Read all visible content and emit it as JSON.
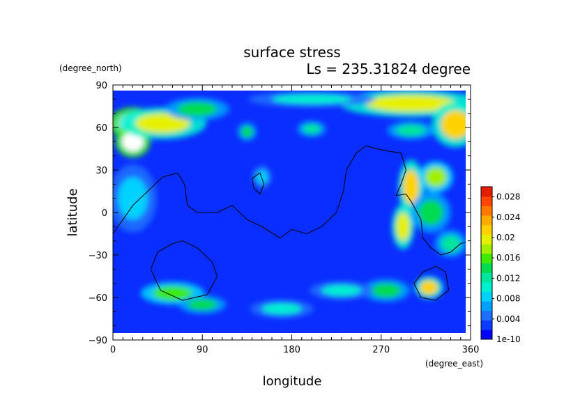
{
  "chart_data": {
    "type": "heatmap",
    "title": "surface stress",
    "subtitle": "Ls = 235.31824 degree",
    "xlabel": "longitude",
    "ylabel": "latitude",
    "x_units": "(degree_east)",
    "y_units": "(degree_north)",
    "xlim": [
      0,
      360
    ],
    "ylim": [
      -90,
      90
    ],
    "x_ticks": [
      0,
      90,
      180,
      270,
      360
    ],
    "y_ticks": [
      -90,
      -60,
      -30,
      0,
      30,
      60,
      90
    ],
    "x_tick_labels": [
      "0",
      "90",
      "180",
      "270",
      "360"
    ],
    "y_tick_labels": [
      "−90",
      "−60",
      "−30",
      "0",
      "30",
      "60",
      "90"
    ],
    "colorbar": {
      "min_label": "1e-10",
      "range": [
        0,
        0.03
      ],
      "ticks": [
        0.004,
        0.008,
        0.012,
        0.016,
        0.02,
        0.024,
        0.028
      ],
      "tick_labels": [
        "0.004",
        "0.008",
        "0.012",
        "0.016",
        "0.02",
        "0.024",
        "0.028"
      ],
      "colors": [
        "#0000ff",
        "#0a3cff",
        "#1e6eff",
        "#00a0ff",
        "#00d2ff",
        "#00f0d2",
        "#00e69b",
        "#00dc50",
        "#3ceb00",
        "#a0f000",
        "#e6f000",
        "#ffd200",
        "#ffaa00",
        "#ff7800",
        "#ff4600",
        "#e61e00"
      ]
    },
    "features": [
      {
        "lon": 20,
        "lat": 63,
        "value": 0.03,
        "size_lon": 30,
        "size_lat": 14
      },
      {
        "lon": 20,
        "lat": 50,
        "value": 0.03,
        "size_lon": 22,
        "size_lat": 14
      },
      {
        "lon": 50,
        "lat": 63,
        "value": 0.02,
        "size_lon": 55,
        "size_lat": 14
      },
      {
        "lon": 85,
        "lat": 73,
        "value": 0.014,
        "size_lon": 40,
        "size_lat": 10
      },
      {
        "lon": 135,
        "lat": 57,
        "value": 0.014,
        "size_lon": 12,
        "size_lat": 8
      },
      {
        "lon": 200,
        "lat": 59,
        "value": 0.012,
        "size_lon": 18,
        "size_lat": 7
      },
      {
        "lon": 300,
        "lat": 77,
        "value": 0.02,
        "size_lon": 90,
        "size_lat": 12
      },
      {
        "lon": 345,
        "lat": 62,
        "value": 0.022,
        "size_lon": 30,
        "size_lat": 20
      },
      {
        "lon": 300,
        "lat": 58,
        "value": 0.012,
        "size_lon": 30,
        "size_lat": 8
      },
      {
        "lon": 300,
        "lat": 18,
        "value": 0.022,
        "size_lon": 16,
        "size_lat": 24
      },
      {
        "lon": 292,
        "lat": -10,
        "value": 0.02,
        "size_lon": 14,
        "size_lat": 20
      },
      {
        "lon": 325,
        "lat": 25,
        "value": 0.018,
        "size_lon": 22,
        "size_lat": 14
      },
      {
        "lon": 320,
        "lat": 0,
        "value": 0.014,
        "size_lon": 25,
        "size_lat": 18
      },
      {
        "lon": 340,
        "lat": -22,
        "value": 0.012,
        "size_lon": 20,
        "size_lat": 12
      },
      {
        "lon": 318,
        "lat": -53,
        "value": 0.022,
        "size_lon": 18,
        "size_lat": 10
      },
      {
        "lon": 275,
        "lat": -55,
        "value": 0.014,
        "size_lon": 30,
        "size_lat": 10
      },
      {
        "lon": 60,
        "lat": -57,
        "value": 0.016,
        "size_lon": 40,
        "size_lat": 10
      },
      {
        "lon": 90,
        "lat": -65,
        "value": 0.014,
        "size_lon": 30,
        "size_lat": 8
      },
      {
        "lon": 170,
        "lat": -68,
        "value": 0.01,
        "size_lon": 40,
        "size_lat": 8
      },
      {
        "lon": 230,
        "lat": -55,
        "value": 0.01,
        "size_lon": 40,
        "size_lat": 8
      },
      {
        "lon": 150,
        "lat": 25,
        "value": 0.008,
        "size_lon": 12,
        "size_lat": 10
      },
      {
        "lon": 20,
        "lat": 10,
        "value": 0.008,
        "size_lon": 30,
        "size_lat": 30
      },
      {
        "lon": 200,
        "lat": 80,
        "value": 0.01,
        "size_lon": 80,
        "size_lat": 7
      }
    ],
    "contours": [
      {
        "points": [
          [
            0,
            -15
          ],
          [
            10,
            -5
          ],
          [
            20,
            5
          ],
          [
            35,
            15
          ],
          [
            50,
            25
          ],
          [
            65,
            28
          ],
          [
            72,
            20
          ],
          [
            75,
            5
          ],
          [
            85,
            0
          ],
          [
            105,
            0
          ],
          [
            120,
            5
          ],
          [
            135,
            -5
          ],
          [
            150,
            -10
          ],
          [
            168,
            -18
          ],
          [
            180,
            -12
          ],
          [
            195,
            -15
          ],
          [
            210,
            -10
          ],
          [
            225,
            0
          ],
          [
            232,
            15
          ],
          [
            235,
            30
          ],
          [
            245,
            42
          ],
          [
            255,
            47
          ],
          [
            265,
            45
          ],
          [
            280,
            43
          ],
          [
            290,
            42
          ],
          [
            295,
            30
          ],
          [
            290,
            20
          ],
          [
            285,
            12
          ],
          [
            295,
            13
          ],
          [
            300,
            8
          ],
          [
            310,
            -5
          ],
          [
            312,
            -18
          ],
          [
            320,
            -25
          ],
          [
            330,
            -30
          ],
          [
            340,
            -28
          ],
          [
            350,
            -22
          ],
          [
            360,
            -20
          ]
        ]
      },
      {
        "points": [
          [
            140,
            24
          ],
          [
            148,
            28
          ],
          [
            152,
            20
          ],
          [
            148,
            13
          ],
          [
            142,
            17
          ],
          [
            140,
            24
          ]
        ]
      },
      {
        "points": [
          [
            70,
            -20
          ],
          [
            85,
            -25
          ],
          [
            100,
            -35
          ],
          [
            105,
            -45
          ],
          [
            95,
            -58
          ],
          [
            70,
            -62
          ],
          [
            48,
            -55
          ],
          [
            38,
            -40
          ],
          [
            45,
            -28
          ],
          [
            60,
            -22
          ],
          [
            70,
            -20
          ]
        ]
      },
      {
        "points": [
          [
            325,
            -38
          ],
          [
            335,
            -42
          ],
          [
            338,
            -55
          ],
          [
            325,
            -62
          ],
          [
            310,
            -60
          ],
          [
            303,
            -50
          ],
          [
            312,
            -42
          ],
          [
            325,
            -38
          ]
        ]
      }
    ]
  }
}
